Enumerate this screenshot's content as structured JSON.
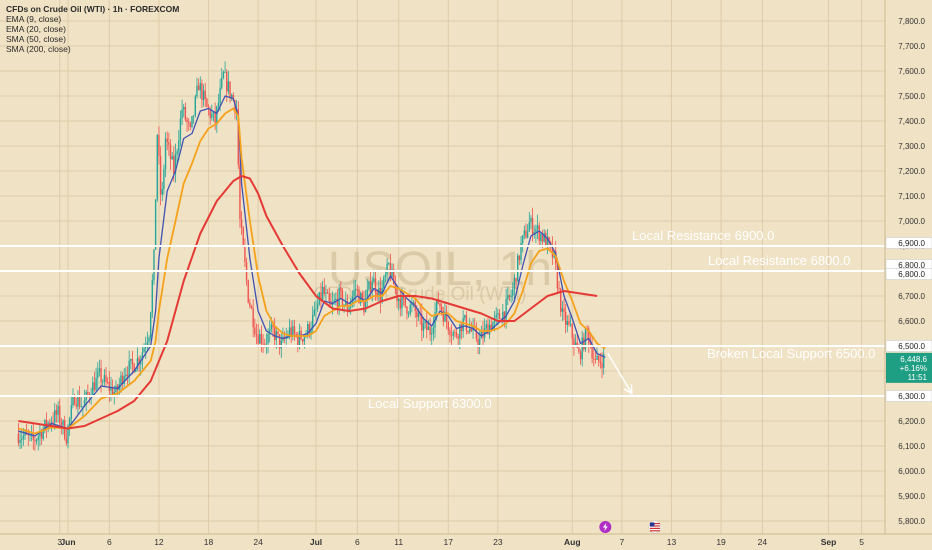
{
  "legend": {
    "title": "CFDs on Crude Oil (WTI) · 1h · FOREXCOM",
    "indicators": [
      "EMA (9, close)",
      "EMA (20, close)",
      "SMA (50, close)",
      "SMA (200, close)"
    ]
  },
  "watermark": {
    "ticker": "USOIL, 1h",
    "name": "CFDs on Crude Oil (WTI)"
  },
  "colors": {
    "background": "#F0E2C4",
    "grid": "#DDCCA9",
    "candle_up": "#26A69A",
    "candle_down": "#EF5350",
    "ema9": "#3F51B5",
    "ema20": "#F5A21A",
    "sma50": "#E53935",
    "level_line": "#FFFFFF",
    "price_badge": "#1E9E82"
  },
  "chart_data": {
    "type": "candlestick",
    "ylim": [
      5750,
      7880
    ],
    "y_axis": {
      "ticks": [
        "5,800.0",
        "5,900.0",
        "6,000.0",
        "6,100.0",
        "6,200.0",
        "6,300.0",
        "6,400.0",
        "6,500.0",
        "6,600.0",
        "6,700.0",
        "6,800.0",
        "6,900.0",
        "7,000.0",
        "7,100.0",
        "7,200.0",
        "7,300.0",
        "7,400.0",
        "7,500.0",
        "7,600.0",
        "7,700.0",
        "7,800.0"
      ],
      "level_badges": [
        "6,900.0",
        "6,800.0",
        "6,800.0",
        "6,500.0",
        "6,300.0"
      ],
      "price_badge": {
        "price": "6,448.6",
        "change": "+6.16%",
        "countdown": "11:51",
        "value": 6448.6
      }
    },
    "x_axis": {
      "labels": [
        {
          "text": "3",
          "day": -1
        },
        {
          "text": "Jun",
          "day": 0
        },
        {
          "text": "6",
          "day": 5
        },
        {
          "text": "12",
          "day": 11
        },
        {
          "text": "18",
          "day": 17
        },
        {
          "text": "24",
          "day": 23
        },
        {
          "text": "Jul",
          "day": 30
        },
        {
          "text": "6",
          "day": 35
        },
        {
          "text": "11",
          "day": 40
        },
        {
          "text": "17",
          "day": 46
        },
        {
          "text": "23",
          "day": 52
        },
        {
          "text": "Aug",
          "day": 61
        },
        {
          "text": "7",
          "day": 67
        },
        {
          "text": "13",
          "day": 73
        },
        {
          "text": "19",
          "day": 79
        },
        {
          "text": "24",
          "day": 84
        },
        {
          "text": "Sep",
          "day": 92
        },
        {
          "text": "5",
          "day": 96
        }
      ]
    },
    "price_path": [
      [
        -6,
        6150
      ],
      [
        -4,
        6120
      ],
      [
        -2,
        6200
      ],
      [
        -1,
        6230
      ],
      [
        0,
        6140
      ],
      [
        1,
        6300
      ],
      [
        2,
        6260
      ],
      [
        3,
        6330
      ],
      [
        4,
        6380
      ],
      [
        5,
        6340
      ],
      [
        6,
        6310
      ],
      [
        7,
        6400
      ],
      [
        8,
        6420
      ],
      [
        9,
        6460
      ],
      [
        10,
        6560
      ],
      [
        10.6,
        6850
      ],
      [
        11,
        7350
      ],
      [
        11.5,
        7050
      ],
      [
        12,
        7330
      ],
      [
        13,
        7200
      ],
      [
        14,
        7450
      ],
      [
        15,
        7350
      ],
      [
        16,
        7550
      ],
      [
        17,
        7450
      ],
      [
        18,
        7400
      ],
      [
        19,
        7580
      ],
      [
        20,
        7500
      ],
      [
        20.6,
        7450
      ],
      [
        21,
        7000
      ],
      [
        22,
        6700
      ],
      [
        23,
        6550
      ],
      [
        24,
        6520
      ],
      [
        25,
        6560
      ],
      [
        26,
        6500
      ],
      [
        27,
        6560
      ],
      [
        28,
        6530
      ],
      [
        29,
        6550
      ],
      [
        30,
        6620
      ],
      [
        31,
        6720
      ],
      [
        32,
        6650
      ],
      [
        33,
        6700
      ],
      [
        34,
        6650
      ],
      [
        35,
        6730
      ],
      [
        36,
        6660
      ],
      [
        37,
        6770
      ],
      [
        38,
        6700
      ],
      [
        39,
        6820
      ],
      [
        40,
        6700
      ],
      [
        41,
        6660
      ],
      [
        42,
        6650
      ],
      [
        43,
        6580
      ],
      [
        44,
        6560
      ],
      [
        45,
        6680
      ],
      [
        46,
        6600
      ],
      [
        47,
        6540
      ],
      [
        48,
        6600
      ],
      [
        49,
        6560
      ],
      [
        50,
        6520
      ],
      [
        51,
        6580
      ],
      [
        52,
        6600
      ],
      [
        53,
        6640
      ],
      [
        54,
        6720
      ],
      [
        55,
        6900
      ],
      [
        56,
        6990
      ],
      [
        57,
        6960
      ],
      [
        58,
        6920
      ],
      [
        59,
        6850
      ],
      [
        60,
        6620
      ],
      [
        61,
        6560
      ],
      [
        62,
        6460
      ],
      [
        63,
        6560
      ],
      [
        64,
        6430
      ],
      [
        65,
        6450
      ]
    ],
    "candles_hourly_resampled": true,
    "series": [
      {
        "name": "EMA (9, close)",
        "color_key": "ema9",
        "points": [
          [
            -6,
            6160
          ],
          [
            -4,
            6140
          ],
          [
            -2,
            6190
          ],
          [
            0,
            6170
          ],
          [
            2,
            6260
          ],
          [
            4,
            6340
          ],
          [
            6,
            6330
          ],
          [
            8,
            6400
          ],
          [
            10,
            6500
          ],
          [
            10.6,
            6640
          ],
          [
            11,
            6850
          ],
          [
            12,
            7120
          ],
          [
            13,
            7200
          ],
          [
            14,
            7330
          ],
          [
            15,
            7350
          ],
          [
            16,
            7440
          ],
          [
            17,
            7450
          ],
          [
            18,
            7430
          ],
          [
            19,
            7500
          ],
          [
            20,
            7490
          ],
          [
            20.6,
            7420
          ],
          [
            21,
            7150
          ],
          [
            22,
            6850
          ],
          [
            23,
            6640
          ],
          [
            24,
            6560
          ],
          [
            25,
            6540
          ],
          [
            26,
            6530
          ],
          [
            27,
            6540
          ],
          [
            28,
            6540
          ],
          [
            29,
            6550
          ],
          [
            30,
            6590
          ],
          [
            31,
            6680
          ],
          [
            32,
            6670
          ],
          [
            33,
            6690
          ],
          [
            34,
            6670
          ],
          [
            35,
            6700
          ],
          [
            36,
            6680
          ],
          [
            37,
            6730
          ],
          [
            38,
            6710
          ],
          [
            39,
            6780
          ],
          [
            40,
            6730
          ],
          [
            41,
            6690
          ],
          [
            42,
            6660
          ],
          [
            43,
            6610
          ],
          [
            44,
            6580
          ],
          [
            45,
            6640
          ],
          [
            46,
            6620
          ],
          [
            47,
            6570
          ],
          [
            48,
            6580
          ],
          [
            49,
            6570
          ],
          [
            50,
            6540
          ],
          [
            51,
            6560
          ],
          [
            52,
            6590
          ],
          [
            53,
            6620
          ],
          [
            54,
            6680
          ],
          [
            55,
            6820
          ],
          [
            56,
            6940
          ],
          [
            57,
            6960
          ],
          [
            58,
            6930
          ],
          [
            59,
            6870
          ],
          [
            60,
            6700
          ],
          [
            61,
            6610
          ],
          [
            62,
            6510
          ],
          [
            63,
            6530
          ],
          [
            64,
            6470
          ],
          [
            65,
            6455
          ]
        ]
      },
      {
        "name": "EMA (20, close)",
        "color_key": "ema20",
        "points": [
          [
            -6,
            6170
          ],
          [
            -4,
            6150
          ],
          [
            -2,
            6175
          ],
          [
            0,
            6170
          ],
          [
            2,
            6220
          ],
          [
            4,
            6290
          ],
          [
            6,
            6310
          ],
          [
            8,
            6360
          ],
          [
            10,
            6440
          ],
          [
            10.6,
            6520
          ],
          [
            11,
            6640
          ],
          [
            12,
            6850
          ],
          [
            13,
            7000
          ],
          [
            14,
            7150
          ],
          [
            15,
            7230
          ],
          [
            16,
            7320
          ],
          [
            17,
            7370
          ],
          [
            18,
            7390
          ],
          [
            19,
            7430
          ],
          [
            20,
            7450
          ],
          [
            20.6,
            7420
          ],
          [
            21,
            7250
          ],
          [
            22,
            7000
          ],
          [
            23,
            6780
          ],
          [
            24,
            6640
          ],
          [
            25,
            6580
          ],
          [
            26,
            6550
          ],
          [
            27,
            6540
          ],
          [
            28,
            6540
          ],
          [
            29,
            6540
          ],
          [
            30,
            6560
          ],
          [
            31,
            6620
          ],
          [
            32,
            6640
          ],
          [
            33,
            6660
          ],
          [
            34,
            6660
          ],
          [
            35,
            6680
          ],
          [
            36,
            6680
          ],
          [
            37,
            6700
          ],
          [
            38,
            6700
          ],
          [
            39,
            6740
          ],
          [
            40,
            6730
          ],
          [
            41,
            6710
          ],
          [
            42,
            6690
          ],
          [
            43,
            6650
          ],
          [
            44,
            6620
          ],
          [
            45,
            6630
          ],
          [
            46,
            6630
          ],
          [
            47,
            6600
          ],
          [
            48,
            6590
          ],
          [
            49,
            6580
          ],
          [
            50,
            6560
          ],
          [
            51,
            6560
          ],
          [
            52,
            6570
          ],
          [
            53,
            6590
          ],
          [
            54,
            6630
          ],
          [
            55,
            6720
          ],
          [
            56,
            6830
          ],
          [
            57,
            6880
          ],
          [
            58,
            6890
          ],
          [
            59,
            6860
          ],
          [
            60,
            6760
          ],
          [
            61,
            6680
          ],
          [
            62,
            6590
          ],
          [
            63,
            6560
          ],
          [
            64,
            6510
          ],
          [
            65,
            6490
          ]
        ]
      },
      {
        "name": "SMA (50, close)",
        "color_key": "sma50",
        "points": [
          [
            -6,
            6200
          ],
          [
            -2,
            6180
          ],
          [
            0,
            6170
          ],
          [
            2,
            6180
          ],
          [
            4,
            6210
          ],
          [
            6,
            6240
          ],
          [
            8,
            6280
          ],
          [
            10,
            6360
          ],
          [
            12,
            6520
          ],
          [
            14,
            6760
          ],
          [
            16,
            6950
          ],
          [
            18,
            7080
          ],
          [
            20,
            7160
          ],
          [
            21,
            7180
          ],
          [
            22,
            7170
          ],
          [
            23,
            7110
          ],
          [
            24,
            7020
          ],
          [
            26,
            6900
          ],
          [
            28,
            6790
          ],
          [
            30,
            6700
          ],
          [
            32,
            6650
          ],
          [
            34,
            6640
          ],
          [
            36,
            6650
          ],
          [
            38,
            6680
          ],
          [
            40,
            6700
          ],
          [
            42,
            6700
          ],
          [
            44,
            6690
          ],
          [
            46,
            6670
          ],
          [
            48,
            6650
          ],
          [
            50,
            6630
          ],
          [
            52,
            6600
          ],
          [
            54,
            6600
          ],
          [
            56,
            6650
          ],
          [
            58,
            6700
          ],
          [
            60,
            6720
          ],
          [
            62,
            6710
          ],
          [
            64,
            6700
          ]
        ]
      }
    ],
    "levels": [
      {
        "label": "Local Resistance 6900.0",
        "value": 6900
      },
      {
        "label": "Local Resistance 6800.0",
        "value": 6800
      },
      {
        "label": "Broken Local Support 6500.0",
        "value": 6500
      },
      {
        "label": "Local Support 6300.0",
        "value": 6300
      }
    ],
    "projection_arrow": {
      "from": [
        65.3,
        6470
      ],
      "to": [
        68.2,
        6310
      ]
    },
    "event_markers": [
      {
        "icon": "lightning-icon",
        "day": 65
      },
      {
        "icon": "us-flag-icon",
        "day": 71
      }
    ]
  }
}
